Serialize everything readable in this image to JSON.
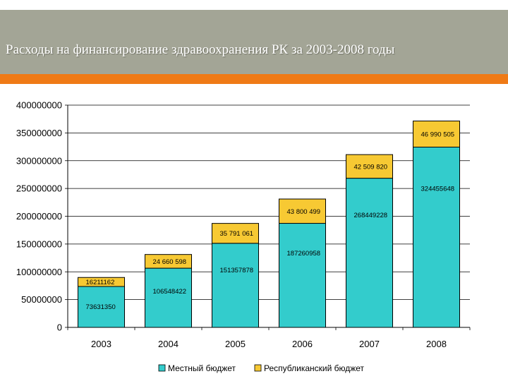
{
  "header": {
    "title": "Расходы на финансирование здравоохранения РК за 2003-2008  годы"
  },
  "colors": {
    "header_bg": "#a3a596",
    "accent_stripe": "#ef7a16",
    "local_budget": "#33cccc",
    "republican_budget": "#f7c933"
  },
  "chart_data": {
    "type": "bar",
    "stacked": true,
    "title": "Расходы на финансирование здравоохранения РК за 2003-2008  годы",
    "categories": [
      "2003",
      "2004",
      "2005",
      "2006",
      "2007",
      "2008"
    ],
    "series": [
      {
        "name": "Местный бюджет",
        "color": "#33cccc",
        "values": [
          73631350,
          106548422,
          151357878,
          187260958,
          268449228,
          324455648
        ],
        "labels": [
          "73631350",
          "106548422",
          "151357878",
          "187260958",
          "268449228",
          "324455648"
        ]
      },
      {
        "name": "Республиканский бюджет",
        "color": "#f7c933",
        "values": [
          16211162,
          24660598,
          35791061,
          43800499,
          42509820,
          46990505
        ],
        "labels": [
          "16211162",
          "24 660 598",
          "35 791 061",
          "43 800 499",
          "42 509 820",
          "46 990 505"
        ]
      }
    ],
    "yticks": [
      "0",
      "50000000",
      "100000000",
      "150000000",
      "200000000",
      "250000000",
      "300000000",
      "350000000",
      "400000000"
    ],
    "ylim": [
      0,
      400000000
    ],
    "grid": true,
    "legend": "bottom",
    "xlabel": "",
    "ylabel": ""
  }
}
